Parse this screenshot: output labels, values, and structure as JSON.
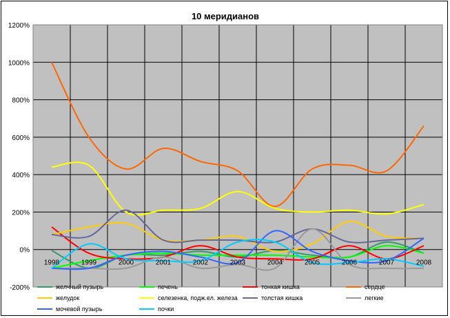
{
  "chart_data": {
    "type": "line",
    "title": "10 меридианов",
    "xlabel": "",
    "ylabel": "",
    "x": [
      "1998",
      "1999",
      "2000",
      "2001",
      "2002",
      "2003",
      "2004",
      "2005",
      "2006",
      "2007",
      "2008"
    ],
    "ylim": [
      -200,
      1200
    ],
    "yticks": [
      -200,
      0,
      200,
      400,
      600,
      800,
      1000,
      1200
    ],
    "ytick_labels": [
      "-200%",
      "0%",
      "200%",
      "400%",
      "600%",
      "800%",
      "1000%",
      "1200%"
    ],
    "grid": true,
    "legend_position": "bottom",
    "plot_background": "#c0c0c0",
    "series": [
      {
        "name": "желчный пузырь",
        "color": "#339966",
        "values": [
          -5,
          -100,
          -30,
          -30,
          -10,
          -40,
          -5,
          -30,
          -40,
          40,
          -20
        ]
      },
      {
        "name": "печень",
        "color": "#00ff00",
        "values": [
          -100,
          -60,
          -30,
          -20,
          -30,
          -30,
          -30,
          -40,
          -40,
          20,
          -20
        ]
      },
      {
        "name": "тонкая кишка",
        "color": "#ff0000",
        "values": [
          120,
          -20,
          -50,
          -40,
          20,
          -40,
          -50,
          -50,
          20,
          -50,
          20
        ]
      },
      {
        "name": "сердце",
        "color": "#ff6600",
        "values": [
          1000,
          600,
          430,
          540,
          470,
          420,
          230,
          430,
          450,
          420,
          660
        ]
      },
      {
        "name": "желудок",
        "color": "#ffcc00",
        "values": [
          80,
          120,
          140,
          50,
          50,
          70,
          -10,
          30,
          150,
          70,
          60
        ]
      },
      {
        "name": "селезенка, подж.ел. железа",
        "color": "#ffff00",
        "values": [
          440,
          450,
          200,
          210,
          220,
          310,
          220,
          200,
          210,
          190,
          240
        ]
      },
      {
        "name": "толстая кишка",
        "color": "#666699",
        "values": [
          80,
          70,
          210,
          50,
          50,
          50,
          40,
          110,
          40,
          50,
          60
        ]
      },
      {
        "name": "легкие",
        "color": "#999999",
        "values": [
          -100,
          -100,
          -100,
          -40,
          -100,
          -80,
          -100,
          110,
          -80,
          -100,
          -100
        ]
      },
      {
        "name": "мочевой пузырь",
        "color": "#3366ff",
        "values": [
          -100,
          -100,
          -30,
          -10,
          -40,
          -70,
          100,
          -10,
          -60,
          -60,
          60
        ]
      },
      {
        "name": "почки",
        "color": "#00ccff",
        "values": [
          -100,
          30,
          -50,
          -60,
          -60,
          40,
          40,
          -70,
          -70,
          -50,
          -90
        ]
      }
    ]
  }
}
